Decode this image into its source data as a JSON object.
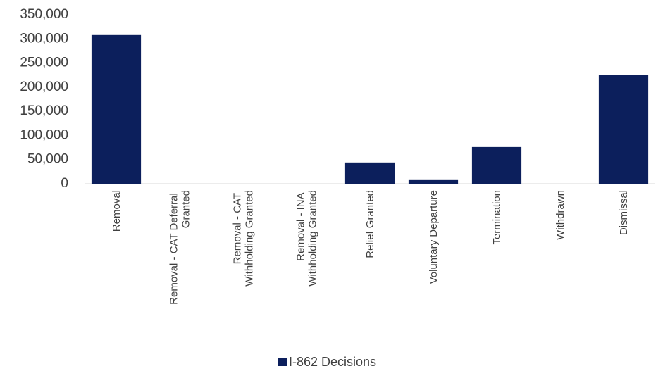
{
  "chart_data": {
    "type": "bar",
    "categories": [
      "Removal",
      "Removal - CAT Deferral Granted",
      "Removal - CAT Withholding Granted",
      "Removal - INA Withholding Granted",
      "Relief Granted",
      "Voluntary Departure",
      "Termination",
      "Withdrawn",
      "Dismissal"
    ],
    "series": [
      {
        "name": "I-862 Decisions",
        "color": "#0c1f5c",
        "values": [
          308000,
          0,
          0,
          0,
          44000,
          9000,
          76000,
          0,
          225000
        ]
      }
    ],
    "ylim": [
      0,
      350000
    ],
    "yticks": [
      0,
      {
        "value": 50000,
        "label": "50,000"
      },
      {
        "value": 100000,
        "label": "100,000"
      },
      {
        "value": 150000,
        "label": "150,000"
      },
      {
        "value": 200000,
        "label": "200,000"
      },
      {
        "value": 250000,
        "label": "250,000"
      },
      {
        "value": 300000,
        "label": "300,000"
      },
      {
        "value": 350000,
        "label": "350,000"
      }
    ],
    "grid": false,
    "legend": "bottom"
  }
}
